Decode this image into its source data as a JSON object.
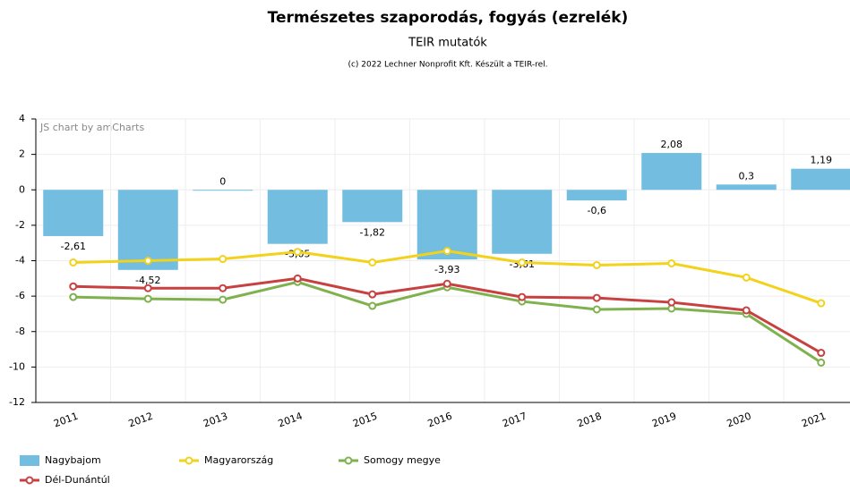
{
  "chart_data": {
    "type": "bar",
    "title": "Természetes szaporodás, fogyás (ezrelék)",
    "subtitle": "TEIR mutatók",
    "credit": "(c) 2022 Lechner Nonprofit Kft. Készült a TEIR-rel.",
    "watermark": "JS chart by amCharts",
    "categories": [
      "2011",
      "2012",
      "2013",
      "2014",
      "2015",
      "2016",
      "2017",
      "2018",
      "2019",
      "2020",
      "2021"
    ],
    "series": [
      {
        "name": "Nagybajom",
        "type": "bar",
        "color": "#73bde0",
        "values": [
          -2.61,
          -4.52,
          0,
          -3.05,
          -1.82,
          -3.93,
          -3.61,
          -0.6,
          2.08,
          0.3,
          1.19
        ],
        "value_labels": [
          "-2,61",
          "-4,52",
          "0",
          "-3,05",
          "-1,82",
          "-3,93",
          "-3,61",
          "-0,6",
          "2,08",
          "0,3",
          "1,19"
        ]
      },
      {
        "name": "Magyarország",
        "type": "line",
        "color": "#f2d21b",
        "values": [
          -4.1,
          -4.0,
          -3.9,
          -3.5,
          -4.1,
          -3.45,
          -4.1,
          -4.25,
          -4.15,
          -4.95,
          -6.4
        ]
      },
      {
        "name": "Somogy megye",
        "type": "line",
        "color": "#7fb24f",
        "values": [
          -6.05,
          -6.15,
          -6.2,
          -5.2,
          -6.55,
          -5.5,
          -6.3,
          -6.75,
          -6.7,
          -7.0,
          -9.75
        ]
      },
      {
        "name": "Dél-Dunántúl",
        "type": "line",
        "color": "#c84141",
        "values": [
          -5.45,
          -5.55,
          -5.55,
          -5.0,
          -5.9,
          -5.3,
          -6.05,
          -6.1,
          -6.35,
          -6.8,
          -9.2
        ]
      }
    ],
    "ylim": [
      -12,
      4
    ],
    "yticks": [
      -12,
      -10,
      -8,
      -6,
      -4,
      -2,
      0,
      2,
      4
    ],
    "grid": true
  }
}
